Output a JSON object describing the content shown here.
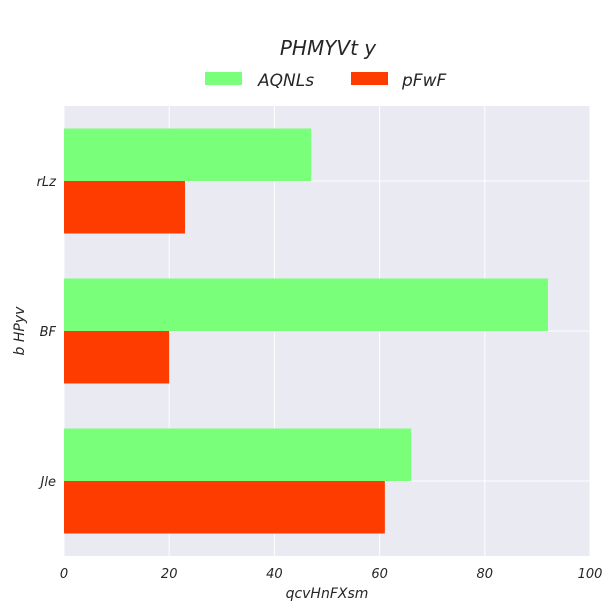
{
  "chart_data": {
    "type": "bar",
    "orientation": "horizontal",
    "title": "PHMYVt y",
    "xlabel": "qcvHnFXsm",
    "ylabel": "b HPyv",
    "categories": [
      "Jle",
      "BF",
      "rLz"
    ],
    "series": [
      {
        "name": "AQNLs",
        "values": [
          66,
          92,
          47
        ],
        "color": "#7aff7a"
      },
      {
        "name": "pFwF",
        "values": [
          61,
          20,
          23
        ],
        "color": "#ff3c00"
      }
    ],
    "xlim": [
      0,
      100
    ],
    "xticks": [
      "0",
      "20",
      "40",
      "60",
      "80",
      "100"
    ],
    "grid": true,
    "legend_position": "top-center",
    "background_color": "#eaeaf2"
  }
}
